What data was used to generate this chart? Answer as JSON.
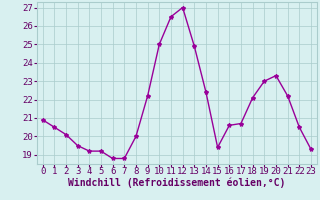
{
  "x": [
    0,
    1,
    2,
    3,
    4,
    5,
    6,
    7,
    8,
    9,
    10,
    11,
    12,
    13,
    14,
    15,
    16,
    17,
    18,
    19,
    20,
    21,
    22,
    23
  ],
  "y": [
    20.9,
    20.5,
    20.1,
    19.5,
    19.2,
    19.2,
    18.8,
    18.8,
    20.0,
    22.2,
    25.0,
    26.5,
    27.0,
    24.9,
    22.4,
    19.4,
    20.6,
    20.7,
    22.1,
    23.0,
    23.3,
    22.2,
    20.5,
    19.3
  ],
  "line_color": "#990099",
  "marker": "*",
  "marker_size": 3,
  "xlabel": "Windchill (Refroidissement éolien,°C)",
  "ylim": [
    18.5,
    27.3
  ],
  "xlim": [
    -0.5,
    23.5
  ],
  "yticks": [
    19,
    20,
    21,
    22,
    23,
    24,
    25,
    26,
    27
  ],
  "xticks": [
    0,
    1,
    2,
    3,
    4,
    5,
    6,
    7,
    8,
    9,
    10,
    11,
    12,
    13,
    14,
    15,
    16,
    17,
    18,
    19,
    20,
    21,
    22,
    23
  ],
  "background_color": "#d8f0f0",
  "grid_color": "#aacccc",
  "tick_color": "#660066",
  "xlabel_color": "#660066",
  "xlabel_fontsize": 7,
  "tick_fontsize": 6.5,
  "line_width": 1.0
}
